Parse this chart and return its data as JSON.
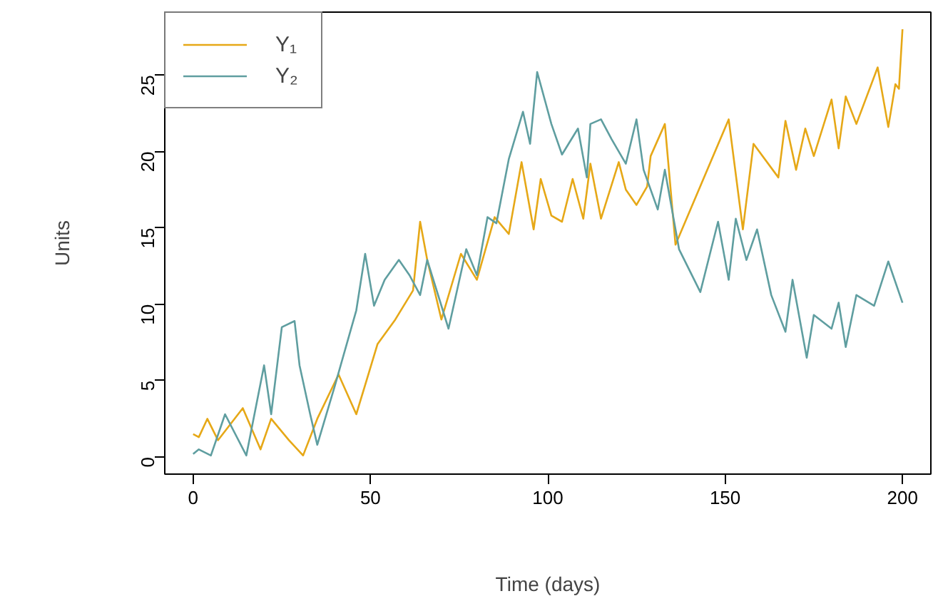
{
  "chart_data": {
    "type": "line",
    "xlabel": "Time (days)",
    "ylabel": "Units",
    "xlim": [
      -8,
      208
    ],
    "ylim": [
      -1.12,
      29.12
    ],
    "xticks": [
      0,
      50,
      100,
      150,
      200
    ],
    "yticks": [
      0,
      5,
      10,
      15,
      20,
      25
    ],
    "grid": false,
    "legend": "top left",
    "marker": "none",
    "line_style": "solid",
    "series": [
      {
        "name": "Y₁",
        "color": "#e6a817",
        "x": [
          0,
          1.6,
          4,
          7,
          14,
          19,
          22,
          27,
          31,
          35,
          41,
          46,
          52,
          57,
          62,
          64,
          66,
          70,
          75.5,
          80,
          85,
          89,
          92.6,
          96,
          98,
          101,
          104,
          107,
          110,
          112,
          115,
          120,
          122,
          125,
          128,
          129,
          133,
          136,
          151,
          155,
          158,
          165,
          167,
          170,
          172.6,
          175,
          180,
          182,
          184,
          187,
          193,
          196,
          198,
          199,
          200
        ],
        "values": [
          1.5,
          1.3,
          2.5,
          1.1,
          3.2,
          0.5,
          2.5,
          1.1,
          0.1,
          2.5,
          5.4,
          2.8,
          7.4,
          9.0,
          10.9,
          15.4,
          12.9,
          9.0,
          13.3,
          11.6,
          15.7,
          14.6,
          19.3,
          14.9,
          18.2,
          15.8,
          15.4,
          18.2,
          15.6,
          19.2,
          15.6,
          19.3,
          17.5,
          16.5,
          17.7,
          19.7,
          21.8,
          13.9,
          22.1,
          14.9,
          20.5,
          18.3,
          22.0,
          18.8,
          21.5,
          19.7,
          23.4,
          20.2,
          23.6,
          21.8,
          25.5,
          21.6,
          24.4,
          24.1,
          28.0
        ]
      },
      {
        "name": "Y₂",
        "color": "#5f9ea0",
        "x": [
          0,
          1.6,
          5,
          9,
          15,
          20,
          22,
          25,
          28.6,
          30,
          33,
          35,
          40,
          46,
          48.5,
          51,
          54,
          58,
          61,
          64,
          66,
          72,
          77,
          80,
          83,
          85.5,
          89,
          93,
          95,
          97,
          101,
          104,
          108.5,
          111,
          112,
          115,
          118,
          122,
          125,
          127,
          131,
          133,
          137,
          143,
          148,
          151,
          153,
          156,
          159,
          163,
          167,
          169,
          173,
          175,
          180,
          182,
          184,
          187,
          192,
          196,
          200
        ],
        "values": [
          0.2,
          0.5,
          0.1,
          2.8,
          0.1,
          6.0,
          2.8,
          8.5,
          8.9,
          6.0,
          2.8,
          0.8,
          4.7,
          9.6,
          13.3,
          9.9,
          11.6,
          12.9,
          11.9,
          10.6,
          12.9,
          8.4,
          13.6,
          11.9,
          15.7,
          15.3,
          19.5,
          22.6,
          20.5,
          25.2,
          21.8,
          19.8,
          21.5,
          18.3,
          21.8,
          22.1,
          20.8,
          19.2,
          22.1,
          18.8,
          16.2,
          18.8,
          13.6,
          10.8,
          15.4,
          11.6,
          15.6,
          12.9,
          14.9,
          10.6,
          8.2,
          11.6,
          6.5,
          9.3,
          8.4,
          10.1,
          7.2,
          10.6,
          9.9,
          12.8,
          10.1
        ]
      }
    ]
  }
}
